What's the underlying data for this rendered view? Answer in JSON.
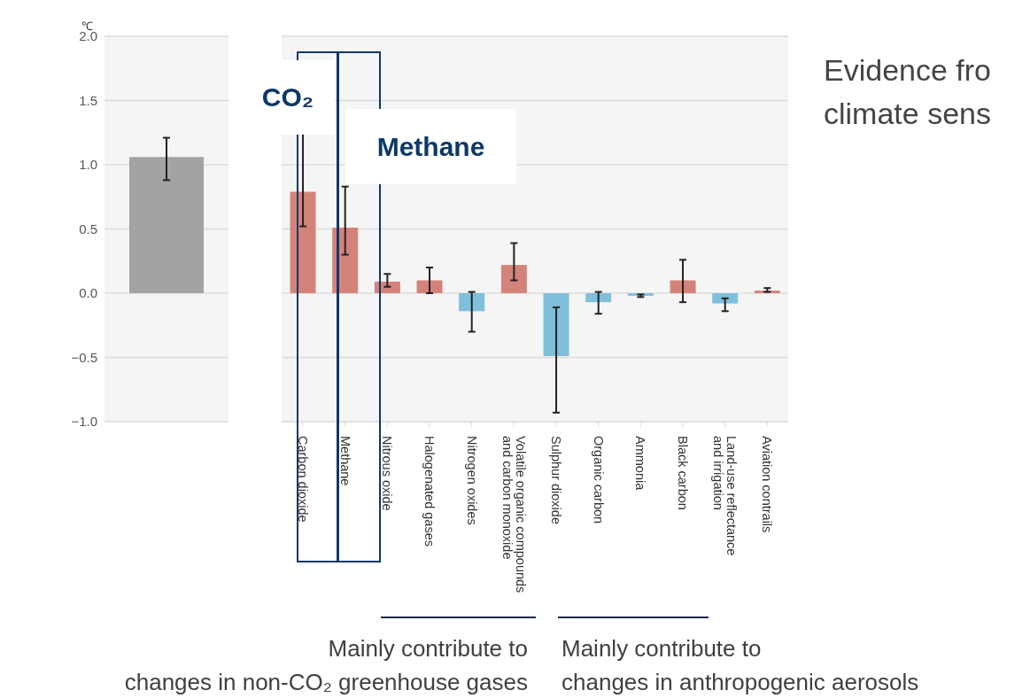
{
  "chart_data": [
    {
      "type": "bar",
      "ylabel": "℃",
      "categories": [
        null
      ],
      "values": [
        1.06
      ],
      "errors": [
        [
          0.88,
          1.21
        ]
      ],
      "colors": [
        "#a3a3a3"
      ],
      "ylim": [
        -1,
        2
      ],
      "yticks": [
        {
          "value": -1,
          "label": "−1.0"
        },
        {
          "value": -0.5,
          "label": "−0.5"
        },
        {
          "value": 0,
          "label": "0.0"
        },
        {
          "value": 0.5,
          "label": "0.5"
        },
        {
          "value": 1,
          "label": "1.0"
        },
        {
          "value": 1.5,
          "label": "1.5"
        },
        {
          "value": 2,
          "label": "2.0"
        }
      ],
      "grid": "y"
    },
    {
      "type": "bar",
      "categories": [
        "Carbon dioxide",
        "Methane",
        "Nitrous oxide",
        "Halogenated gases",
        "Nitrogen oxides",
        "Volatile organic compounds\nand carbon monoxide",
        "Sulphur dioxide",
        "Organic carbon",
        "Ammonia",
        "Black carbon",
        "Land-use reflectance\nand irrigation",
        "Aviation contrails"
      ],
      "values": [
        0.79,
        0.51,
        0.09,
        0.1,
        -0.14,
        0.22,
        -0.49,
        -0.07,
        -0.02,
        0.1,
        -0.08,
        0.02
      ],
      "errors": [
        [
          0.52,
          1.25
        ],
        [
          0.3,
          0.83
        ],
        [
          0.05,
          0.15
        ],
        [
          0,
          0.2
        ],
        [
          -0.3,
          0.01
        ],
        [
          0.1,
          0.39
        ],
        [
          -0.93,
          -0.11
        ],
        [
          -0.16,
          0.01
        ],
        [
          -0.03,
          -0.01
        ],
        [
          -0.07,
          0.26
        ],
        [
          -0.14,
          -0.04
        ],
        [
          0.01,
          0.04
        ]
      ],
      "colors": [
        "#d4837a",
        "#d4837a",
        "#d4837a",
        "#d4837a",
        "#7fbfdc",
        "#d4837a",
        "#7fbfdc",
        "#7fbfdc",
        "#7fbfdc",
        "#d4837a",
        "#7fbfdc",
        "#d4837a"
      ],
      "ylim": [
        -1,
        2
      ],
      "yticks": [
        -1,
        -0.5,
        0,
        0.5,
        1,
        1.5,
        2
      ],
      "grid": "y",
      "tick_labels": "x",
      "annotations": [
        "CO₂",
        "Methane",
        "Mainly contribute to\nchanges in non-CO₂ greenhouse gases",
        "Mainly contribute to\nchanges in anthropogenic aerosols",
        "Evidence fro\nclimate sens"
      ]
    }
  ]
}
